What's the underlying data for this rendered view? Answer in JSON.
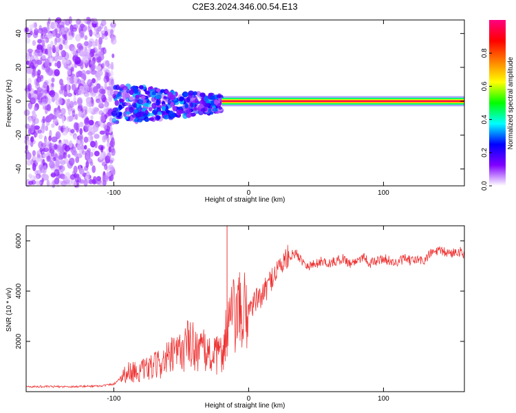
{
  "chart_data": [
    {
      "type": "heatmap",
      "title": "C2E3.2024.346.00.54.E13",
      "xlabel": "Height of straight line (km)",
      "ylabel": "Frequency (Hz)",
      "xlim": [
        -165,
        160
      ],
      "ylim": [
        -50,
        48
      ],
      "x_ticks": [
        -100,
        0,
        100
      ],
      "y_ticks": [
        -40,
        -20,
        0,
        20,
        40
      ],
      "x_tick_labels": [
        "-100",
        "0",
        "100"
      ],
      "y_tick_labels": [
        "-40",
        "-20",
        "0",
        "20",
        "40"
      ],
      "colorbar": {
        "label": "Normalized spectral amplitude",
        "range": [
          0,
          1
        ],
        "ticks": [
          0.0,
          0.2,
          0.4,
          0.6,
          0.8
        ],
        "tick_labels": [
          "0.0",
          "0.2",
          "0.4",
          "0.6",
          "0.8"
        ],
        "colormap": [
          "#ffffff",
          "#8000ff",
          "#0000ff",
          "#00ffff",
          "#00ff00",
          "#ffff00",
          "#ff8000",
          "#ff0000",
          "#ff0080"
        ]
      },
      "regions": [
        {
          "x_range": [
            -165,
            -100
          ],
          "freq_range": [
            -50,
            48
          ],
          "amplitude": [
            0.02,
            0.12
          ]
        },
        {
          "x_range": [
            -100,
            -20
          ],
          "freq_range": [
            -12,
            12
          ],
          "amplitude": [
            0.05,
            0.35
          ]
        },
        {
          "x_range": [
            -20,
            160
          ],
          "freq_range": [
            -1,
            1
          ],
          "amplitude": [
            0.5,
            1.0
          ]
        }
      ],
      "grid": false,
      "legend": "none"
    },
    {
      "type": "line",
      "xlabel": "Height of straight line (km)",
      "ylabel": "SNR (10 * v/v)",
      "xlim": [
        -165,
        160
      ],
      "ylim": [
        0,
        6600
      ],
      "x_ticks": [
        -100,
        0,
        100
      ],
      "y_ticks": [
        2000,
        4000,
        6000
      ],
      "x_tick_labels": [
        "-100",
        "0",
        "100"
      ],
      "y_tick_labels": [
        "2000",
        "4000",
        "6000"
      ],
      "series": [
        {
          "color": "#ee3333",
          "x": [
            -165,
            -150,
            -130,
            -110,
            -100,
            -92,
            -88,
            -80,
            -70,
            -60,
            -50,
            -45,
            -40,
            -30,
            -25,
            -20,
            -15,
            -10,
            -5,
            0,
            5,
            10,
            15,
            20,
            25,
            30,
            35,
            40,
            45,
            50,
            55,
            60,
            65,
            70,
            75,
            80,
            85,
            90,
            95,
            100,
            105,
            110,
            115,
            120,
            125,
            130,
            135,
            140,
            145,
            150,
            155,
            160
          ],
          "y": [
            200,
            200,
            200,
            230,
            300,
            700,
            800,
            800,
            1000,
            1300,
            1600,
            1900,
            1800,
            1500,
            1400,
            1500,
            2800,
            3000,
            3100,
            3300,
            3600,
            3800,
            4300,
            4800,
            5100,
            5400,
            5500,
            5200,
            5000,
            5100,
            5200,
            5100,
            5200,
            5300,
            5100,
            5200,
            5400,
            5100,
            5200,
            5300,
            5200,
            5100,
            5300,
            5200,
            5250,
            5200,
            5500,
            5600,
            5550,
            5500,
            5600,
            5500
          ],
          "spike": {
            "x": -16,
            "y": 6600
          }
        }
      ],
      "grid": false,
      "legend": "none"
    }
  ]
}
